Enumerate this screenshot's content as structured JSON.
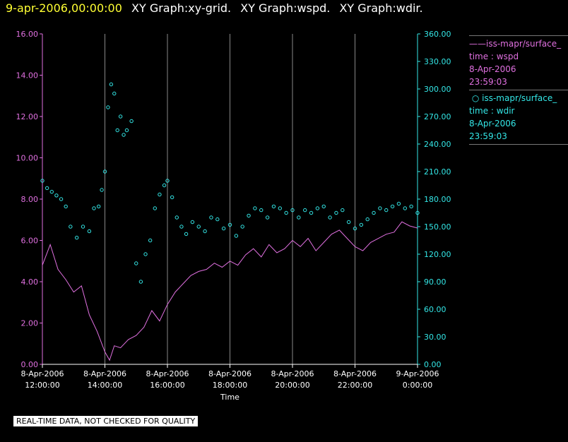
{
  "header": {
    "date": "9-apr-2006,00:00:00",
    "graphs": [
      "XY Graph:xy-grid.",
      "XY Graph:wspd.",
      "XY Graph:wdir."
    ]
  },
  "colors": {
    "wspd": "#e070e0",
    "wdir": "#33e6e6",
    "grid": "#888888",
    "header_date": "#ffff33"
  },
  "legend": {
    "wspd": {
      "name": "iss-mapr/surface_",
      "field": "time : wspd",
      "date": "8-Apr-2006",
      "time": "23:59:03"
    },
    "wdir": {
      "name": "iss-mapr/surface_",
      "field": "time : wdir",
      "date": "8-Apr-2006",
      "time": "23:59:03"
    }
  },
  "footer_note": "REAL-TIME DATA, NOT CHECKED FOR QUALITY",
  "chart_data": {
    "type": "line",
    "xlabel": "Time",
    "xlim": [
      12,
      24
    ],
    "x_ticks": [
      {
        "x": 12,
        "date": "8-Apr-2006",
        "time": "12:00:00"
      },
      {
        "x": 14,
        "date": "8-Apr-2006",
        "time": "14:00:00"
      },
      {
        "x": 16,
        "date": "8-Apr-2006",
        "time": "16:00:00"
      },
      {
        "x": 18,
        "date": "8-Apr-2006",
        "time": "18:00:00"
      },
      {
        "x": 20,
        "date": "8-Apr-2006",
        "time": "20:00:00"
      },
      {
        "x": 22,
        "date": "8-Apr-2006",
        "time": "22:00:00"
      },
      {
        "x": 24,
        "date": "9-Apr-2006",
        "time": "0:00:00"
      }
    ],
    "y_left": {
      "lim": [
        0,
        16
      ],
      "ticks": [
        "0.00",
        "2.00",
        "4.00",
        "6.00",
        "8.00",
        "10.00",
        "12.00",
        "14.00",
        "16.00"
      ]
    },
    "y_right": {
      "lim": [
        0,
        360
      ],
      "ticks": [
        "0.00",
        "30.00",
        "60.00",
        "90.00",
        "120.00",
        "150.00",
        "180.00",
        "210.00",
        "240.00",
        "270.00",
        "300.00",
        "330.00",
        "360.00"
      ]
    },
    "grid": "vertical",
    "series": [
      {
        "name": "iss-mapr/surface_",
        "kind": "line",
        "axis": "left",
        "x": [
          12.0,
          12.25,
          12.5,
          12.75,
          13.0,
          13.25,
          13.5,
          13.75,
          14.0,
          14.15,
          14.3,
          14.5,
          14.75,
          15.0,
          15.25,
          15.5,
          15.75,
          16.0,
          16.25,
          16.5,
          16.75,
          17.0,
          17.25,
          17.5,
          17.75,
          18.0,
          18.25,
          18.5,
          18.75,
          19.0,
          19.25,
          19.5,
          19.75,
          20.0,
          20.25,
          20.5,
          20.75,
          21.0,
          21.25,
          21.5,
          21.75,
          22.0,
          22.25,
          22.5,
          22.75,
          23.0,
          23.25,
          23.5,
          23.75,
          24.0
        ],
        "values": [
          4.8,
          5.8,
          4.6,
          4.1,
          3.5,
          3.8,
          2.4,
          1.6,
          0.6,
          0.2,
          0.9,
          0.8,
          1.2,
          1.4,
          1.8,
          2.6,
          2.1,
          2.9,
          3.5,
          3.9,
          4.3,
          4.5,
          4.6,
          4.9,
          4.7,
          5.0,
          4.8,
          5.3,
          5.6,
          5.2,
          5.8,
          5.4,
          5.6,
          6.0,
          5.7,
          6.1,
          5.5,
          5.9,
          6.3,
          6.5,
          6.1,
          5.7,
          5.5,
          5.9,
          6.1,
          6.3,
          6.4,
          6.9,
          6.7,
          6.6
        ]
      },
      {
        "name": "iss-mapr/surface_",
        "kind": "scatter",
        "axis": "right",
        "x": [
          12.0,
          12.15,
          12.3,
          12.45,
          12.6,
          12.75,
          12.9,
          13.1,
          13.3,
          13.5,
          13.65,
          13.8,
          13.9,
          14.0,
          14.1,
          14.2,
          14.3,
          14.4,
          14.5,
          14.6,
          14.7,
          14.85,
          15.0,
          15.15,
          15.3,
          15.45,
          15.6,
          15.75,
          15.9,
          16.0,
          16.15,
          16.3,
          16.45,
          16.6,
          16.8,
          17.0,
          17.2,
          17.4,
          17.6,
          17.8,
          18.0,
          18.2,
          18.4,
          18.6,
          18.8,
          19.0,
          19.2,
          19.4,
          19.6,
          19.8,
          20.0,
          20.2,
          20.4,
          20.6,
          20.8,
          21.0,
          21.2,
          21.4,
          21.6,
          21.8,
          22.0,
          22.2,
          22.4,
          22.6,
          22.8,
          23.0,
          23.2,
          23.4,
          23.6,
          23.8,
          24.0
        ],
        "values": [
          200,
          192,
          188,
          184,
          180,
          172,
          150,
          138,
          150,
          145,
          170,
          172,
          190,
          210,
          280,
          305,
          295,
          255,
          270,
          250,
          255,
          265,
          110,
          90,
          120,
          135,
          170,
          185,
          195,
          200,
          182,
          160,
          150,
          142,
          155,
          150,
          145,
          160,
          158,
          148,
          152,
          140,
          150,
          162,
          170,
          168,
          160,
          172,
          170,
          165,
          168,
          160,
          168,
          165,
          170,
          172,
          160,
          165,
          168,
          155,
          148,
          152,
          158,
          165,
          170,
          168,
          172,
          175,
          170,
          172,
          165
        ]
      }
    ]
  }
}
